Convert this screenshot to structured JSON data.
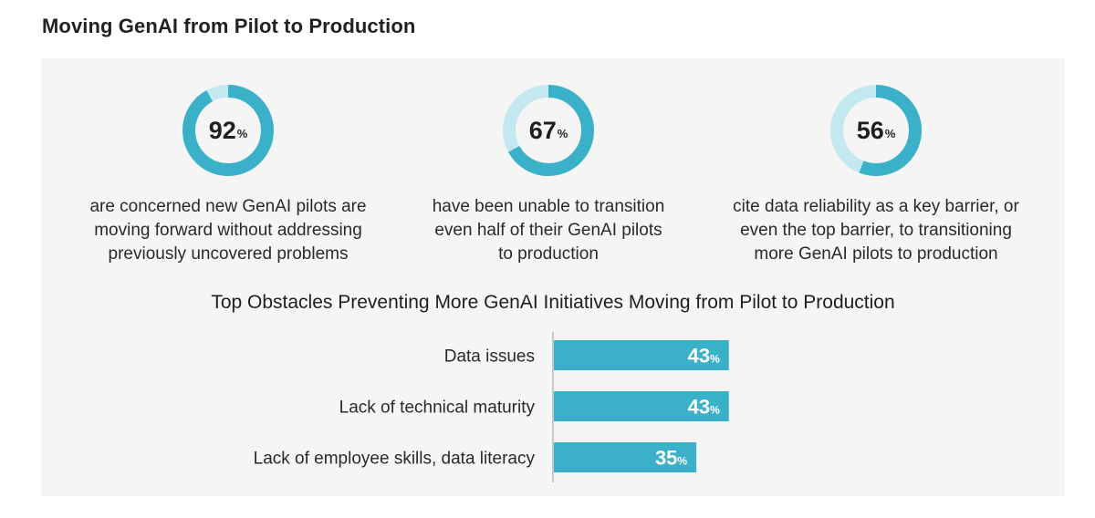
{
  "page": {
    "title": "Moving GenAI from Pilot to Production"
  },
  "colors": {
    "accent": "#3bb0c9",
    "track": "#c4e8f0",
    "panel": "#f5f5f5"
  },
  "stats": [
    {
      "value": 92,
      "value_text": "92",
      "unit": "%",
      "text": "are concerned new GenAI pilots are\nmoving forward without addressing\npreviously uncovered problems"
    },
    {
      "value": 67,
      "value_text": "67",
      "unit": "%",
      "text": "have been unable to transition\neven half of their GenAI pilots\nto production"
    },
    {
      "value": 56,
      "value_text": "56",
      "unit": "%",
      "text": "cite data reliability as a key barrier, or\neven the top barrier, to transitioning\nmore GenAI pilots to production"
    }
  ],
  "chart_data": {
    "type": "bar",
    "orientation": "horizontal",
    "title": "Top Obstacles Preventing More GenAI Initiatives Moving from Pilot to Production",
    "categories": [
      "Data issues",
      "Lack of technical maturity",
      "Lack of employee skills, data literacy"
    ],
    "values": [
      43,
      43,
      35
    ],
    "unit": "%",
    "xlim": [
      0,
      100
    ],
    "xlabel": "",
    "ylabel": "",
    "grid": false,
    "legend": "none"
  }
}
